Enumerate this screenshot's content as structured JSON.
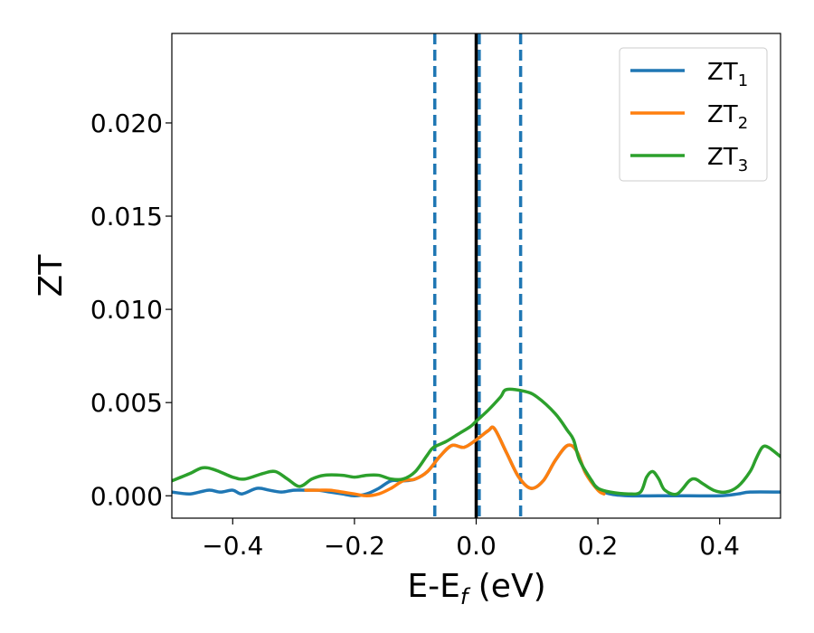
{
  "chart_data": {
    "type": "line",
    "xlabel": "E-E",
    "xlabel_sub": "f",
    "xlabel_unit": " (eV)",
    "ylabel": "ZT",
    "xlim": [
      -0.5,
      0.5
    ],
    "ylim": [
      -0.0012,
      0.0248
    ],
    "xticks": [
      -0.4,
      -0.2,
      0.0,
      0.2,
      0.4
    ],
    "xtick_labels": [
      "−0.4",
      "−0.2",
      "0.0",
      "0.2",
      "0.4"
    ],
    "yticks": [
      0.0,
      0.005,
      0.01,
      0.015,
      0.02
    ],
    "ytick_labels": [
      "0.000",
      "0.005",
      "0.010",
      "0.015",
      "0.020"
    ],
    "grid": false,
    "legend_position": "top-right",
    "vlines": [
      {
        "x": -0.068,
        "style": "dashed",
        "color": "#1f77b4"
      },
      {
        "x": 0.005,
        "style": "dashed",
        "color": "#1f77b4"
      },
      {
        "x": 0.073,
        "style": "dashed",
        "color": "#1f77b4"
      },
      {
        "x": 0.0,
        "style": "solid",
        "color": "#000000"
      }
    ],
    "series": [
      {
        "name": "ZT",
        "name_sub": "1",
        "color": "#1f77b4",
        "x": [
          -0.5,
          -0.47,
          -0.44,
          -0.42,
          -0.4,
          -0.385,
          -0.36,
          -0.34,
          -0.32,
          -0.3,
          -0.28,
          -0.26,
          -0.24,
          -0.22,
          -0.2,
          -0.18,
          -0.16,
          -0.14,
          -0.12,
          -0.1,
          -0.08,
          -0.06,
          -0.04,
          -0.02,
          0.0,
          0.02,
          0.03,
          0.05,
          0.07,
          0.09,
          0.11,
          0.13,
          0.15,
          0.165,
          0.18,
          0.2,
          0.22,
          0.25,
          0.3,
          0.35,
          0.4,
          0.43,
          0.45,
          0.5
        ],
        "values": [
          0.0002,
          0.0001,
          0.0003,
          0.0002,
          0.0003,
          0.0001,
          0.0004,
          0.0003,
          0.0002,
          0.0003,
          0.0003,
          0.0003,
          0.0002,
          0.0001,
          0.0,
          0.0001,
          0.0004,
          0.0008,
          0.0008,
          0.0009,
          0.0013,
          0.0021,
          0.0027,
          0.0026,
          0.003,
          0.0035,
          0.0036,
          0.0023,
          0.001,
          0.0004,
          0.0008,
          0.0019,
          0.0027,
          0.0024,
          0.0012,
          0.0004,
          0.0001,
          0.0,
          0.0,
          0.0,
          0.0,
          0.0001,
          0.0002,
          0.0002
        ]
      },
      {
        "name": "ZT",
        "name_sub": "2",
        "color": "#ff7f0e",
        "x": [
          -0.28,
          -0.26,
          -0.24,
          -0.22,
          -0.2,
          -0.18,
          -0.16,
          -0.14,
          -0.12,
          -0.1,
          -0.08,
          -0.06,
          -0.04,
          -0.02,
          0.0,
          0.02,
          0.03,
          0.05,
          0.07,
          0.09,
          0.11,
          0.13,
          0.15,
          0.165,
          0.18,
          0.2,
          0.21
        ],
        "values": [
          0.0003,
          0.0003,
          0.0003,
          0.0002,
          0.0001,
          0.0,
          0.0001,
          0.0004,
          0.0008,
          0.0009,
          0.0013,
          0.0021,
          0.0027,
          0.0026,
          0.003,
          0.0035,
          0.0036,
          0.0023,
          0.001,
          0.0004,
          0.0008,
          0.0019,
          0.0027,
          0.0024,
          0.0012,
          0.0003,
          0.0001
        ]
      },
      {
        "name": "ZT",
        "name_sub": "3",
        "color": "#2ca02c",
        "x": [
          -0.5,
          -0.47,
          -0.45,
          -0.43,
          -0.4,
          -0.38,
          -0.35,
          -0.33,
          -0.31,
          -0.29,
          -0.27,
          -0.25,
          -0.22,
          -0.2,
          -0.18,
          -0.16,
          -0.14,
          -0.12,
          -0.1,
          -0.08,
          -0.07,
          -0.05,
          -0.03,
          -0.01,
          0.0,
          0.02,
          0.04,
          0.05,
          0.08,
          0.1,
          0.13,
          0.15,
          0.16,
          0.17,
          0.19,
          0.2,
          0.22,
          0.25,
          0.27,
          0.28,
          0.29,
          0.3,
          0.31,
          0.33,
          0.35,
          0.36,
          0.37,
          0.39,
          0.41,
          0.43,
          0.45,
          0.46,
          0.47,
          0.48,
          0.5
        ],
        "values": [
          0.0008,
          0.0012,
          0.0015,
          0.0014,
          0.001,
          0.0009,
          0.0012,
          0.0013,
          0.0009,
          0.0005,
          0.0009,
          0.0011,
          0.0011,
          0.001,
          0.0011,
          0.0011,
          0.0009,
          0.0009,
          0.0013,
          0.0022,
          0.0026,
          0.0029,
          0.0033,
          0.0037,
          0.004,
          0.0046,
          0.0053,
          0.0057,
          0.0056,
          0.0053,
          0.0044,
          0.0035,
          0.003,
          0.0019,
          0.0008,
          0.0004,
          0.0002,
          0.0001,
          0.0002,
          0.001,
          0.0013,
          0.0009,
          0.0003,
          0.0001,
          0.0008,
          0.0009,
          0.0007,
          0.0003,
          0.0002,
          0.0005,
          0.0013,
          0.002,
          0.0026,
          0.0026,
          0.0021
        ]
      }
    ]
  }
}
